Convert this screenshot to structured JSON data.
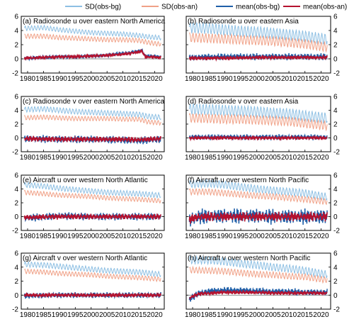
{
  "legend": {
    "placement": "top",
    "items": [
      {
        "label": "SD(obs-bg)",
        "color": "#8dbfe3"
      },
      {
        "label": "SD(obs-an)",
        "color": "#f0a187"
      },
      {
        "label": "mean(obs-bg)",
        "color": "#1f5fa8"
      },
      {
        "label": "mean(obs-an)",
        "color": "#b5122f"
      }
    ]
  },
  "chart_data": [
    {
      "panel": "(a)",
      "title": "Radiosonde u over eastern North America",
      "type": "line",
      "xlim": [
        1978,
        2023
      ],
      "ylim": [
        -2,
        6
      ],
      "yticks": [
        -2,
        0,
        2,
        4,
        6
      ],
      "xticks": [
        1980,
        1985,
        1990,
        1995,
        2000,
        2005,
        2010,
        2015,
        2020
      ],
      "series": [
        {
          "name": "SD(obs-bg)",
          "x": [
            1979,
            1985,
            1990,
            1995,
            2000,
            2005,
            2010,
            2015,
            2018,
            2021
          ],
          "y": [
            4.3,
            4.4,
            4.1,
            3.9,
            3.7,
            3.6,
            3.5,
            3.3,
            3.1,
            3.0
          ],
          "amplitude": 0.3
        },
        {
          "name": "SD(obs-an)",
          "x": [
            1979,
            1985,
            1990,
            1995,
            2000,
            2005,
            2010,
            2015,
            2018,
            2021
          ],
          "y": [
            3.2,
            3.2,
            3.0,
            2.9,
            2.8,
            2.7,
            2.7,
            2.6,
            2.3,
            2.1
          ],
          "amplitude": 0.3
        },
        {
          "name": "mean(obs-bg)",
          "x": [
            1979,
            1985,
            1990,
            1995,
            2000,
            2005,
            2008,
            2011,
            2014,
            2016,
            2017,
            2021
          ],
          "y": [
            0.1,
            0.2,
            0.3,
            0.3,
            0.4,
            0.5,
            0.7,
            0.8,
            1.0,
            1.2,
            0.4,
            0.3
          ],
          "amplitude": 0.2
        },
        {
          "name": "mean(obs-an)",
          "x": [
            1979,
            1985,
            1990,
            1995,
            2000,
            2005,
            2008,
            2011,
            2014,
            2016,
            2017,
            2021
          ],
          "y": [
            0.1,
            0.2,
            0.3,
            0.3,
            0.4,
            0.5,
            0.6,
            0.7,
            0.9,
            1.1,
            0.3,
            0.2
          ],
          "amplitude": 0.15
        }
      ]
    },
    {
      "panel": "(b)",
      "title": "Radiosonde u over eastern Asia",
      "type": "line",
      "xlim": [
        1978,
        2023
      ],
      "ylim": [
        -2,
        6
      ],
      "yticks": [
        -2,
        0,
        2,
        4,
        6
      ],
      "xticks": [
        1980,
        1985,
        1990,
        1995,
        2000,
        2005,
        2010,
        2015,
        2020
      ],
      "series": [
        {
          "name": "SD(obs-bg)",
          "x": [
            1979,
            1985,
            1990,
            1995,
            2000,
            2005,
            2010,
            2015,
            2021
          ],
          "y": [
            4.4,
            4.3,
            4.1,
            3.9,
            3.8,
            3.6,
            3.4,
            3.2,
            2.8
          ],
          "amplitude": 0.7
        },
        {
          "name": "SD(obs-an)",
          "x": [
            1979,
            1985,
            1990,
            1995,
            2000,
            2005,
            2010,
            2015,
            2021
          ],
          "y": [
            3.0,
            2.9,
            2.8,
            2.7,
            2.6,
            2.5,
            2.3,
            2.1,
            1.7
          ],
          "amplitude": 0.6
        },
        {
          "name": "mean(obs-bg)",
          "x": [
            1979,
            1990,
            2000,
            2010,
            2021
          ],
          "y": [
            0.2,
            0.3,
            0.3,
            0.3,
            0.3
          ],
          "amplitude": 0.35
        },
        {
          "name": "mean(obs-an)",
          "x": [
            1979,
            1990,
            2000,
            2010,
            2021
          ],
          "y": [
            0.1,
            0.1,
            0.2,
            0.2,
            0.2
          ],
          "amplitude": 0.2
        }
      ]
    },
    {
      "panel": "(c)",
      "title": "Radiosonde v over eastern North America",
      "type": "line",
      "xlim": [
        1978,
        2023
      ],
      "ylim": [
        -2,
        6
      ],
      "yticks": [
        -2,
        0,
        2,
        4,
        6
      ],
      "xticks": [
        1980,
        1985,
        1990,
        1995,
        2000,
        2005,
        2010,
        2015,
        2020
      ],
      "series": [
        {
          "name": "SD(obs-bg)",
          "x": [
            1979,
            1985,
            1990,
            1995,
            2000,
            2005,
            2010,
            2015,
            2018,
            2021
          ],
          "y": [
            4.1,
            4.2,
            4.0,
            3.8,
            3.7,
            3.6,
            3.5,
            3.4,
            3.1,
            3.0
          ],
          "amplitude": 0.35
        },
        {
          "name": "SD(obs-an)",
          "x": [
            1979,
            1985,
            1990,
            1995,
            2000,
            2005,
            2010,
            2015,
            2018,
            2021
          ],
          "y": [
            2.9,
            3.0,
            2.9,
            2.8,
            2.8,
            2.8,
            2.7,
            2.7,
            2.3,
            2.2
          ],
          "amplitude": 0.3
        },
        {
          "name": "mean(obs-bg)",
          "x": [
            1979,
            1990,
            2000,
            2010,
            2015,
            2021
          ],
          "y": [
            -0.1,
            -0.2,
            -0.2,
            -0.3,
            -0.4,
            -0.2
          ],
          "amplitude": 0.4
        },
        {
          "name": "mean(obs-an)",
          "x": [
            1979,
            1990,
            2000,
            2010,
            2015,
            2021
          ],
          "y": [
            -0.1,
            -0.2,
            -0.2,
            -0.2,
            -0.3,
            -0.1
          ],
          "amplitude": 0.3
        }
      ]
    },
    {
      "panel": "(d)",
      "title": "Radiosonde v over eastern Asia",
      "type": "line",
      "xlim": [
        1978,
        2023
      ],
      "ylim": [
        -2,
        6
      ],
      "yticks": [
        -2,
        0,
        2,
        4,
        6
      ],
      "xticks": [
        1980,
        1985,
        1990,
        1995,
        2000,
        2005,
        2010,
        2015,
        2020
      ],
      "series": [
        {
          "name": "SD(obs-bg)",
          "x": [
            1979,
            1985,
            1990,
            1995,
            2000,
            2005,
            2010,
            2015,
            2021
          ],
          "y": [
            4.2,
            4.1,
            4.0,
            3.9,
            3.8,
            3.6,
            3.5,
            3.2,
            2.9
          ],
          "amplitude": 0.7
        },
        {
          "name": "SD(obs-an)",
          "x": [
            1979,
            1985,
            1990,
            1995,
            2000,
            2005,
            2010,
            2015,
            2021
          ],
          "y": [
            2.9,
            2.8,
            2.7,
            2.7,
            2.6,
            2.5,
            2.4,
            2.1,
            1.8
          ],
          "amplitude": 0.6
        },
        {
          "name": "mean(obs-bg)",
          "x": [
            1979,
            1990,
            2000,
            2010,
            2021
          ],
          "y": [
            0.1,
            0.1,
            0.1,
            0.1,
            0.1
          ],
          "amplitude": 0.3
        },
        {
          "name": "mean(obs-an)",
          "x": [
            1979,
            1990,
            2000,
            2010,
            2021
          ],
          "y": [
            0.0,
            0.0,
            0.0,
            0.0,
            0.0
          ],
          "amplitude": 0.2
        }
      ]
    },
    {
      "panel": "(e)",
      "title": "Aircraft u over western North Atlantic",
      "type": "line",
      "xlim": [
        1978,
        2023
      ],
      "ylim": [
        -2,
        6
      ],
      "yticks": [
        -2,
        0,
        2,
        4,
        6
      ],
      "xticks": [
        1980,
        1985,
        1990,
        1995,
        2000,
        2005,
        2010,
        2015,
        2020
      ],
      "series": [
        {
          "name": "SD(obs-bg)",
          "x": [
            1979,
            1985,
            1990,
            1995,
            2000,
            2005,
            2010,
            2015,
            2021
          ],
          "y": [
            4.6,
            4.4,
            4.1,
            3.9,
            3.7,
            3.5,
            3.4,
            3.3,
            3.1
          ],
          "amplitude": 0.35
        },
        {
          "name": "SD(obs-an)",
          "x": [
            1979,
            1985,
            1990,
            1995,
            2000,
            2005,
            2010,
            2015,
            2021
          ],
          "y": [
            3.5,
            3.3,
            3.1,
            3.0,
            2.9,
            2.7,
            2.6,
            2.5,
            2.3
          ],
          "amplitude": 0.3
        },
        {
          "name": "mean(obs-bg)",
          "x": [
            1979,
            1990,
            2000,
            2010,
            2021
          ],
          "y": [
            -0.2,
            0.1,
            0.0,
            0.0,
            0.0
          ],
          "amplitude": 0.4
        },
        {
          "name": "mean(obs-an)",
          "x": [
            1979,
            1990,
            2000,
            2010,
            2021
          ],
          "y": [
            -0.1,
            0.0,
            0.0,
            0.0,
            0.0
          ],
          "amplitude": 0.3
        }
      ]
    },
    {
      "panel": "(f)",
      "title": "Aircraft u over western North Pacific",
      "type": "line",
      "xlim": [
        1978,
        2023
      ],
      "ylim": [
        -2,
        6
      ],
      "yticks": [
        -2,
        0,
        2,
        4,
        6
      ],
      "xticks": [
        1980,
        1985,
        1990,
        1995,
        2000,
        2005,
        2010,
        2015,
        2020
      ],
      "series": [
        {
          "name": "SD(obs-bg)",
          "x": [
            1979,
            1985,
            1990,
            1995,
            2000,
            2005,
            2010,
            2015,
            2021
          ],
          "y": [
            4.7,
            4.8,
            4.6,
            4.3,
            4.0,
            3.8,
            3.6,
            3.4,
            2.9
          ],
          "amplitude": 0.5
        },
        {
          "name": "SD(obs-an)",
          "x": [
            1979,
            1985,
            1990,
            1995,
            2000,
            2005,
            2010,
            2015,
            2021
          ],
          "y": [
            3.6,
            3.6,
            3.4,
            3.2,
            3.0,
            2.9,
            2.7,
            2.5,
            2.2
          ],
          "amplitude": 0.4
        },
        {
          "name": "mean(obs-bg)",
          "x": [
            1979,
            1982,
            1990,
            2000,
            2005,
            2010,
            2015,
            2021
          ],
          "y": [
            -0.5,
            0.0,
            0.1,
            0.1,
            0.0,
            0.0,
            0.0,
            0.0
          ],
          "amplitude": 0.8
        },
        {
          "name": "mean(obs-an)",
          "x": [
            1979,
            1982,
            1990,
            2000,
            2005,
            2010,
            2015,
            2021
          ],
          "y": [
            -0.4,
            0.0,
            0.0,
            0.0,
            0.0,
            0.0,
            0.0,
            0.0
          ],
          "amplitude": 0.5
        }
      ]
    },
    {
      "panel": "(g)",
      "title": "Aircraft v over western North Atlantic",
      "type": "line",
      "xlim": [
        1978,
        2023
      ],
      "ylim": [
        -2,
        6
      ],
      "yticks": [
        -2,
        0,
        2,
        4,
        6
      ],
      "xticks": [
        1980,
        1985,
        1990,
        1995,
        2000,
        2005,
        2010,
        2015,
        2020
      ],
      "series": [
        {
          "name": "SD(obs-bg)",
          "x": [
            1979,
            1985,
            1990,
            1995,
            2000,
            2005,
            2010,
            2015,
            2021
          ],
          "y": [
            4.4,
            4.3,
            4.1,
            3.9,
            3.7,
            3.5,
            3.4,
            3.3,
            3.0
          ],
          "amplitude": 0.35
        },
        {
          "name": "SD(obs-an)",
          "x": [
            1979,
            1985,
            1990,
            1995,
            2000,
            2005,
            2010,
            2015,
            2021
          ],
          "y": [
            3.4,
            3.3,
            3.1,
            3.0,
            2.9,
            2.7,
            2.6,
            2.5,
            2.3
          ],
          "amplitude": 0.3
        },
        {
          "name": "mean(obs-bg)",
          "x": [
            1979,
            1990,
            2000,
            2010,
            2021
          ],
          "y": [
            -0.1,
            0.0,
            0.0,
            0.0,
            0.0
          ],
          "amplitude": 0.3
        },
        {
          "name": "mean(obs-an)",
          "x": [
            1979,
            1990,
            2000,
            2010,
            2021
          ],
          "y": [
            0.0,
            0.0,
            0.0,
            0.0,
            0.0
          ],
          "amplitude": 0.2
        }
      ]
    },
    {
      "panel": "(h)",
      "title": "Aircraft v over western North Pacific",
      "type": "line",
      "xlim": [
        1978,
        2023
      ],
      "ylim": [
        -2,
        6
      ],
      "yticks": [
        -2,
        0,
        2,
        4,
        6
      ],
      "xticks": [
        1980,
        1985,
        1990,
        1995,
        2000,
        2005,
        2010,
        2015,
        2020
      ],
      "series": [
        {
          "name": "SD(obs-bg)",
          "x": [
            1979,
            1985,
            1990,
            1995,
            2000,
            2005,
            2010,
            2015,
            2021
          ],
          "y": [
            5.0,
            5.0,
            4.8,
            4.5,
            4.3,
            4.0,
            3.8,
            3.5,
            3.0
          ],
          "amplitude": 0.5
        },
        {
          "name": "SD(obs-an)",
          "x": [
            1979,
            1985,
            1990,
            1995,
            2000,
            2005,
            2010,
            2015,
            2021
          ],
          "y": [
            3.6,
            3.5,
            3.4,
            3.2,
            3.0,
            2.9,
            2.7,
            2.6,
            2.2
          ],
          "amplitude": 0.4
        },
        {
          "name": "mean(obs-bg)",
          "x": [
            1979,
            1982,
            1986,
            1990,
            2000,
            2005,
            2010,
            2015,
            2021
          ],
          "y": [
            -0.6,
            0.3,
            0.6,
            0.7,
            0.6,
            0.5,
            0.5,
            0.4,
            0.4
          ],
          "amplitude": 0.35
        },
        {
          "name": "mean(obs-an)",
          "x": [
            1979,
            1982,
            1986,
            1990,
            2000,
            2005,
            2010,
            2015,
            2021
          ],
          "y": [
            -0.4,
            0.2,
            0.3,
            0.4,
            0.4,
            0.3,
            0.3,
            0.3,
            0.3
          ],
          "amplitude": 0.2
        }
      ]
    }
  ]
}
